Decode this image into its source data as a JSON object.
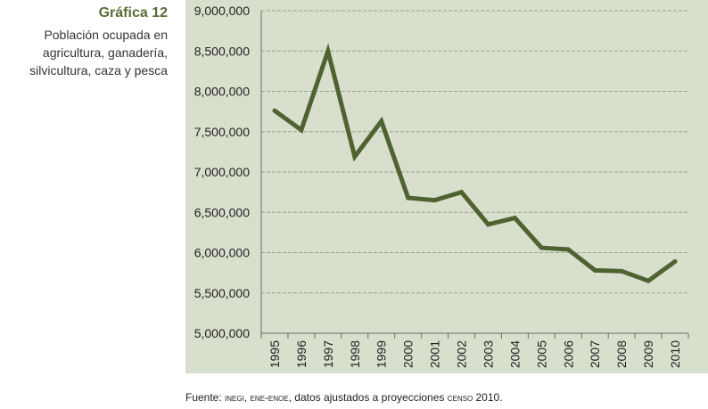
{
  "header": {
    "title": "Gráfica 12",
    "subtitle_lines": [
      "Población ocupada en",
      "agricultura, ganadería,",
      "silvicultura, caza y pesca"
    ]
  },
  "footer": {
    "prefix": "Fuente: ",
    "sc1": "inegi",
    "sep": ", ",
    "sc2": "ene-enoe",
    "middle": ", datos ajustados a proyecciones ",
    "sc3": "censo",
    "suffix": " 2010."
  },
  "colors": {
    "panel_bg": "#d9dfcd",
    "line": "#4f6331",
    "grid": "#9aa28c",
    "title": "#5b6b35"
  },
  "chart_data": {
    "type": "line",
    "title": "Gráfica 12",
    "subtitle": "Población ocupada en agricultura, ganadería, silvicultura, caza y pesca",
    "xlabel": "",
    "ylabel": "",
    "categories": [
      "1995",
      "1996",
      "1997",
      "1998",
      "1999",
      "2000",
      "2001",
      "2002",
      "2003",
      "2004",
      "2005",
      "2006",
      "2007",
      "2008",
      "2009",
      "2010"
    ],
    "series": [
      {
        "values": [
          7760000,
          7520000,
          8500000,
          7190000,
          7630000,
          6680000,
          6650000,
          6750000,
          6350000,
          6430000,
          6060000,
          6040000,
          5780000,
          5770000,
          5650000,
          5890000
        ]
      }
    ],
    "ylim": [
      5000000,
      9000000
    ],
    "yticks": [
      "5,000,000",
      "5,500,000",
      "6,000,000",
      "6,500,000",
      "7,000,000",
      "7,500,000",
      "8,000,000",
      "8,500,000",
      "9,000,000"
    ],
    "grid": true,
    "legend": "none"
  }
}
